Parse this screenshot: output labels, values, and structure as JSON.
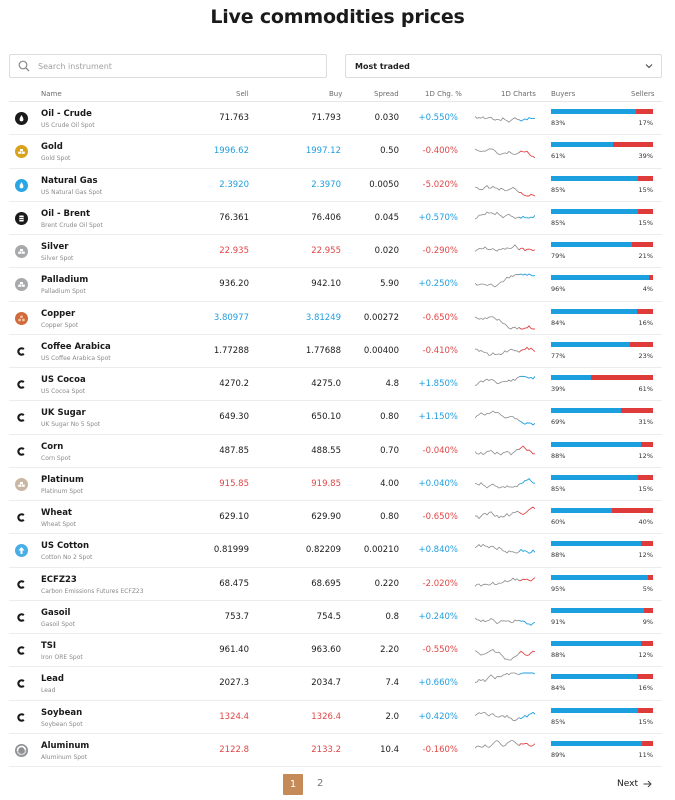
{
  "title": "Live commodities prices",
  "search": {
    "placeholder": "Search instrument"
  },
  "filter": {
    "selected": "Most traded"
  },
  "columns": {
    "name": "Name",
    "sell": "Sell",
    "buy": "Buy",
    "spread": "Spread",
    "change": "1D Chg. %",
    "charts": "1D Charts",
    "buyers": "Buyers",
    "sellers": "Sellers"
  },
  "colors": {
    "up": "#1f9ee0",
    "down": "#e04646",
    "buyers": "#1c9fdf",
    "sellers": "#e03b3b",
    "accent": "#c48a58"
  },
  "rows": [
    {
      "name": "Oil - Crude",
      "sub": "US Crude Oil Spot",
      "sell": "71.763",
      "buy": "71.793",
      "spread": "0.030",
      "chg": "+0.550%",
      "buyers": "83%",
      "sellers": "17%",
      "buyers_fraction": 0.83,
      "price_dir": "neutral",
      "chg_dir": "up",
      "icon": "oil-drop-icon",
      "icon_color": "#1a1a1a"
    },
    {
      "name": "Gold",
      "sub": "Gold Spot",
      "sell": "1996.62",
      "buy": "1997.12",
      "spread": "0.50",
      "chg": "-0.400%",
      "buyers": "61%",
      "sellers": "39%",
      "buyers_fraction": 0.61,
      "price_dir": "up",
      "chg_dir": "down",
      "icon": "gold-bars-icon",
      "icon_color": "#d9a21b"
    },
    {
      "name": "Natural Gas",
      "sub": "US Natural Gas Spot",
      "sell": "2.3920",
      "buy": "2.3970",
      "spread": "0.0050",
      "chg": "-5.020%",
      "buyers": "85%",
      "sellers": "15%",
      "buyers_fraction": 0.85,
      "price_dir": "up",
      "chg_dir": "down",
      "icon": "gas-drop-icon",
      "icon_color": "#2aa6e4"
    },
    {
      "name": "Oil - Brent",
      "sub": "Brent Crude Oil Spot",
      "sell": "76.361",
      "buy": "76.406",
      "spread": "0.045",
      "chg": "+0.570%",
      "buyers": "85%",
      "sellers": "15%",
      "buyers_fraction": 0.85,
      "price_dir": "neutral",
      "chg_dir": "up",
      "icon": "oil-barrel-icon",
      "icon_color": "#1a1a1a"
    },
    {
      "name": "Silver",
      "sub": "Silver Spot",
      "sell": "22.935",
      "buy": "22.955",
      "spread": "0.020",
      "chg": "-0.290%",
      "buyers": "79%",
      "sellers": "21%",
      "buyers_fraction": 0.79,
      "price_dir": "down",
      "chg_dir": "down",
      "icon": "silver-bars-icon",
      "icon_color": "#a8a9ad"
    },
    {
      "name": "Palladium",
      "sub": "Palladium Spot",
      "sell": "936.20",
      "buy": "942.10",
      "spread": "5.90",
      "chg": "+0.250%",
      "buyers": "96%",
      "sellers": "4%",
      "buyers_fraction": 0.96,
      "price_dir": "neutral",
      "chg_dir": "up",
      "icon": "palladium-bars-icon",
      "icon_color": "#a8a9ad"
    },
    {
      "name": "Copper",
      "sub": "Copper Spot",
      "sell": "3.80977",
      "buy": "3.81249",
      "spread": "0.00272",
      "chg": "-0.650%",
      "buyers": "84%",
      "sellers": "16%",
      "buyers_fraction": 0.84,
      "price_dir": "up",
      "chg_dir": "down",
      "icon": "copper-coils-icon",
      "icon_color": "#d16b3b"
    },
    {
      "name": "Coffee Arabica",
      "sub": "US Coffee Arabica Spot",
      "sell": "1.77288",
      "buy": "1.77688",
      "spread": "0.00400",
      "chg": "-0.410%",
      "buyers": "77%",
      "sellers": "23%",
      "buyers_fraction": 0.77,
      "price_dir": "neutral",
      "chg_dir": "down",
      "icon": "brand-c-icon",
      "icon_color": "#1a1a1a"
    },
    {
      "name": "US Cocoa",
      "sub": "US Cocoa Spot",
      "sell": "4270.2",
      "buy": "4275.0",
      "spread": "4.8",
      "chg": "+1.850%",
      "buyers": "39%",
      "sellers": "61%",
      "buyers_fraction": 0.39,
      "price_dir": "neutral",
      "chg_dir": "up",
      "icon": "brand-c-icon",
      "icon_color": "#1a1a1a"
    },
    {
      "name": "UK Sugar",
      "sub": "UK Sugar No 5 Spot",
      "sell": "649.30",
      "buy": "650.10",
      "spread": "0.80",
      "chg": "+1.150%",
      "buyers": "69%",
      "sellers": "31%",
      "buyers_fraction": 0.69,
      "price_dir": "neutral",
      "chg_dir": "up",
      "icon": "brand-c-icon",
      "icon_color": "#1a1a1a"
    },
    {
      "name": "Corn",
      "sub": "Corn Spot",
      "sell": "487.85",
      "buy": "488.55",
      "spread": "0.70",
      "chg": "-0.040%",
      "buyers": "88%",
      "sellers": "12%",
      "buyers_fraction": 0.88,
      "price_dir": "neutral",
      "chg_dir": "down",
      "icon": "brand-c-icon",
      "icon_color": "#1a1a1a"
    },
    {
      "name": "Platinum",
      "sub": "Platinum Spot",
      "sell": "915.85",
      "buy": "919.85",
      "spread": "4.00",
      "chg": "+0.040%",
      "buyers": "85%",
      "sellers": "15%",
      "buyers_fraction": 0.85,
      "price_dir": "down",
      "chg_dir": "up",
      "icon": "platinum-bars-icon",
      "icon_color": "#c9b7a3"
    },
    {
      "name": "Wheat",
      "sub": "Wheat Spot",
      "sell": "629.10",
      "buy": "629.90",
      "spread": "0.80",
      "chg": "-0.650%",
      "buyers": "60%",
      "sellers": "40%",
      "buyers_fraction": 0.6,
      "price_dir": "neutral",
      "chg_dir": "down",
      "icon": "brand-c-icon",
      "icon_color": "#1a1a1a"
    },
    {
      "name": "US Cotton",
      "sub": "Cotton No 2 Spot",
      "sell": "0.81999",
      "buy": "0.82209",
      "spread": "0.00210",
      "chg": "+0.840%",
      "buyers": "88%",
      "sellers": "12%",
      "buyers_fraction": 0.88,
      "price_dir": "neutral",
      "chg_dir": "up",
      "icon": "cotton-icon",
      "icon_color": "#4aaee6"
    },
    {
      "name": "ECFZ23",
      "sub": "Carbon Emissions Futures ECFZ23",
      "sell": "68.475",
      "buy": "68.695",
      "spread": "0.220",
      "chg": "-2.020%",
      "buyers": "95%",
      "sellers": "5%",
      "buyers_fraction": 0.95,
      "price_dir": "neutral",
      "chg_dir": "down",
      "icon": "brand-c-icon",
      "icon_color": "#1a1a1a"
    },
    {
      "name": "Gasoil",
      "sub": "Gasoil Spot",
      "sell": "753.7",
      "buy": "754.5",
      "spread": "0.8",
      "chg": "+0.240%",
      "buyers": "91%",
      "sellers": "9%",
      "buyers_fraction": 0.91,
      "price_dir": "neutral",
      "chg_dir": "up",
      "icon": "brand-c-icon",
      "icon_color": "#1a1a1a"
    },
    {
      "name": "TSI",
      "sub": "Iron ORE Spot",
      "sell": "961.40",
      "buy": "963.60",
      "spread": "2.20",
      "chg": "-0.550%",
      "buyers": "88%",
      "sellers": "12%",
      "buyers_fraction": 0.88,
      "price_dir": "neutral",
      "chg_dir": "down",
      "icon": "brand-c-icon",
      "icon_color": "#1a1a1a"
    },
    {
      "name": "Lead",
      "sub": "Lead",
      "sell": "2027.3",
      "buy": "2034.7",
      "spread": "7.4",
      "chg": "+0.660%",
      "buyers": "84%",
      "sellers": "16%",
      "buyers_fraction": 0.84,
      "price_dir": "neutral",
      "chg_dir": "up",
      "icon": "brand-c-icon",
      "icon_color": "#1a1a1a"
    },
    {
      "name": "Soybean",
      "sub": "Soybean Spot",
      "sell": "1324.4",
      "buy": "1326.4",
      "spread": "2.0",
      "chg": "+0.420%",
      "buyers": "85%",
      "sellers": "15%",
      "buyers_fraction": 0.85,
      "price_dir": "down",
      "chg_dir": "up",
      "icon": "brand-c-icon",
      "icon_color": "#1a1a1a"
    },
    {
      "name": "Aluminum",
      "sub": "Aluminum Spot",
      "sell": "2122.8",
      "buy": "2133.2",
      "spread": "10.4",
      "chg": "-0.160%",
      "buyers": "89%",
      "sellers": "11%",
      "buyers_fraction": 0.89,
      "price_dir": "down",
      "chg_dir": "down",
      "icon": "aluminum-icon",
      "icon_color": "#8f9094"
    }
  ],
  "pagination": {
    "current": "1",
    "next_page": "2",
    "next_label": "Next"
  }
}
